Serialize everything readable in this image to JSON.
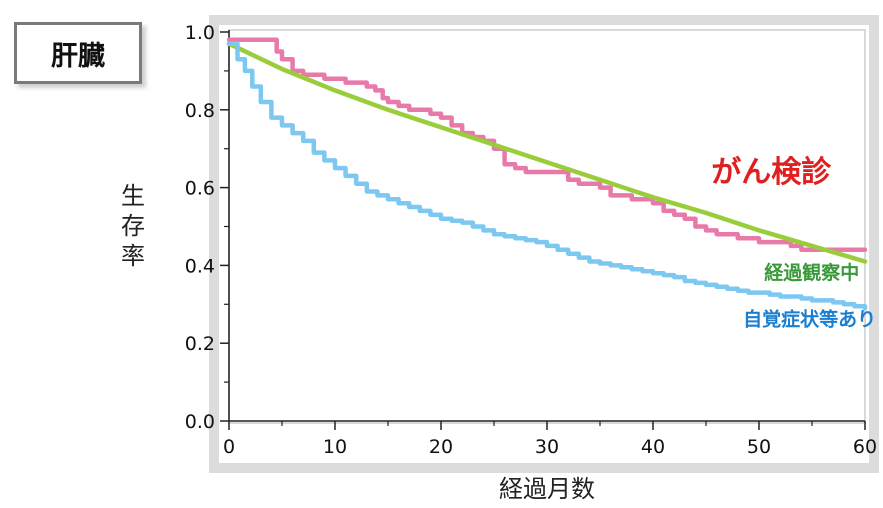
{
  "organ_label": "肝臓",
  "chart_data": {
    "type": "line",
    "title": "",
    "xlabel": "経過月数",
    "ylabel": "生存率",
    "xlim": [
      0,
      60
    ],
    "ylim": [
      0.0,
      1.0
    ],
    "x_ticks": [
      "0",
      "10",
      "20",
      "30",
      "40",
      "50",
      "60"
    ],
    "y_ticks": [
      "0.0",
      "0.2",
      "0.4",
      "0.6",
      "0.8",
      "1.0"
    ],
    "grid": false,
    "series": [
      {
        "name": "がん検診",
        "color": "#e87aaa",
        "step": true,
        "points": [
          [
            0,
            0.98
          ],
          [
            1,
            0.98
          ],
          [
            2,
            0.98
          ],
          [
            3,
            0.98
          ],
          [
            4,
            0.98
          ],
          [
            4.5,
            0.95
          ],
          [
            5,
            0.93
          ],
          [
            6,
            0.9
          ],
          [
            7,
            0.89
          ],
          [
            8,
            0.89
          ],
          [
            9,
            0.88
          ],
          [
            10,
            0.88
          ],
          [
            11,
            0.87
          ],
          [
            12,
            0.87
          ],
          [
            13,
            0.86
          ],
          [
            13.8,
            0.85
          ],
          [
            14.5,
            0.83
          ],
          [
            15,
            0.82
          ],
          [
            16,
            0.81
          ],
          [
            17,
            0.8
          ],
          [
            18,
            0.8
          ],
          [
            19,
            0.79
          ],
          [
            20,
            0.78
          ],
          [
            20,
            0.78
          ],
          [
            21,
            0.76
          ],
          [
            22,
            0.74
          ],
          [
            23,
            0.73
          ],
          [
            24,
            0.72
          ],
          [
            25,
            0.7
          ],
          [
            26,
            0.66
          ],
          [
            27,
            0.65
          ],
          [
            28,
            0.64
          ],
          [
            29,
            0.64
          ],
          [
            30,
            0.64
          ],
          [
            31,
            0.64
          ],
          [
            32,
            0.62
          ],
          [
            33,
            0.61
          ],
          [
            34,
            0.61
          ],
          [
            35,
            0.6
          ],
          [
            36,
            0.58
          ],
          [
            37,
            0.58
          ],
          [
            38,
            0.57
          ],
          [
            39,
            0.57
          ],
          [
            40,
            0.56
          ],
          [
            41,
            0.54
          ],
          [
            42,
            0.53
          ],
          [
            43,
            0.52
          ],
          [
            44,
            0.5
          ],
          [
            45,
            0.49
          ],
          [
            46,
            0.48
          ],
          [
            47,
            0.48
          ],
          [
            48,
            0.47
          ],
          [
            49,
            0.47
          ],
          [
            50,
            0.46
          ],
          [
            51,
            0.46
          ],
          [
            52,
            0.46
          ],
          [
            53,
            0.45
          ],
          [
            54,
            0.44
          ],
          [
            55,
            0.44
          ],
          [
            56,
            0.44
          ],
          [
            57,
            0.44
          ],
          [
            58,
            0.44
          ],
          [
            59,
            0.44
          ],
          [
            60,
            0.44
          ]
        ],
        "label_x": 45.5,
        "label_y": 0.615,
        "label_weight": "bold",
        "label_size": 30,
        "label_color": "#e02020"
      },
      {
        "name": "経過観察中",
        "color": "#9acd3c",
        "step": false,
        "points": [
          [
            0,
            0.97
          ],
          [
            5,
            0.905
          ],
          [
            10,
            0.85
          ],
          [
            15,
            0.8
          ],
          [
            20,
            0.755
          ],
          [
            25,
            0.71
          ],
          [
            30,
            0.665
          ],
          [
            35,
            0.62
          ],
          [
            40,
            0.575
          ],
          [
            45,
            0.535
          ],
          [
            50,
            0.49
          ],
          [
            55,
            0.45
          ],
          [
            60,
            0.41
          ]
        ],
        "label_x": 50.5,
        "label_y": 0.365,
        "label_weight": "bold",
        "label_size": 19,
        "label_color": "#3a9a3a"
      },
      {
        "name": "自覚症状等あり",
        "color": "#7cc8f0",
        "step": true,
        "points": [
          [
            0,
            0.97
          ],
          [
            0.8,
            0.93
          ],
          [
            1.5,
            0.9
          ],
          [
            2.2,
            0.86
          ],
          [
            3,
            0.82
          ],
          [
            4,
            0.78
          ],
          [
            5,
            0.76
          ],
          [
            6,
            0.74
          ],
          [
            7,
            0.72
          ],
          [
            8,
            0.69
          ],
          [
            9,
            0.67
          ],
          [
            10,
            0.65
          ],
          [
            11,
            0.63
          ],
          [
            12,
            0.61
          ],
          [
            13,
            0.59
          ],
          [
            14,
            0.58
          ],
          [
            15,
            0.57
          ],
          [
            16,
            0.56
          ],
          [
            17,
            0.55
          ],
          [
            18,
            0.54
          ],
          [
            19,
            0.53
          ],
          [
            20,
            0.52
          ],
          [
            21,
            0.515
          ],
          [
            22,
            0.51
          ],
          [
            23,
            0.5
          ],
          [
            24,
            0.49
          ],
          [
            25,
            0.48
          ],
          [
            26,
            0.475
          ],
          [
            27,
            0.47
          ],
          [
            28,
            0.465
          ],
          [
            29,
            0.46
          ],
          [
            30,
            0.45
          ],
          [
            31,
            0.44
          ],
          [
            32,
            0.43
          ],
          [
            33,
            0.42
          ],
          [
            34,
            0.41
          ],
          [
            35,
            0.405
          ],
          [
            36,
            0.4
          ],
          [
            37,
            0.395
          ],
          [
            38,
            0.39
          ],
          [
            39,
            0.385
          ],
          [
            40,
            0.38
          ],
          [
            41,
            0.375
          ],
          [
            42,
            0.37
          ],
          [
            43,
            0.36
          ],
          [
            44,
            0.355
          ],
          [
            45,
            0.35
          ],
          [
            46,
            0.345
          ],
          [
            47,
            0.34
          ],
          [
            48,
            0.335
          ],
          [
            49,
            0.33
          ],
          [
            50,
            0.33
          ],
          [
            51,
            0.325
          ],
          [
            52,
            0.32
          ],
          [
            53,
            0.32
          ],
          [
            54,
            0.315
          ],
          [
            55,
            0.31
          ],
          [
            56,
            0.31
          ],
          [
            57,
            0.305
          ],
          [
            58,
            0.3
          ],
          [
            59,
            0.295
          ],
          [
            60,
            0.29
          ]
        ],
        "label_x": 48.5,
        "label_y": 0.245,
        "label_weight": "bold",
        "label_size": 19,
        "label_color": "#1a7fd0"
      }
    ]
  }
}
